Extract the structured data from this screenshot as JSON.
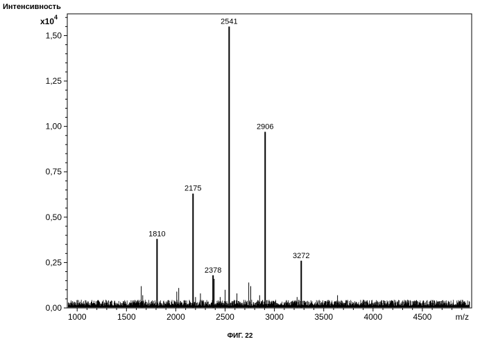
{
  "chart_data": {
    "type": "bar",
    "title": "",
    "ylabel": "Интенсивность",
    "y_multiplier": "x10",
    "y_multiplier_exp": "4",
    "xlabel": "m/z",
    "xlim": [
      900,
      5000
    ],
    "ylim": [
      0,
      1.62
    ],
    "xticks": [
      1000,
      1500,
      2000,
      2500,
      3000,
      3500,
      4000,
      4500
    ],
    "xtick_labels": [
      "1000",
      "1500",
      "2000",
      "2500",
      "3000",
      "3500",
      "4000",
      "4500"
    ],
    "yticks": [
      0,
      0.25,
      0.5,
      0.75,
      1.0,
      1.25,
      1.5
    ],
    "ytick_labels": [
      "0,00",
      "0,25",
      "0,50",
      "0,75",
      "1,00",
      "1,25",
      "1,50"
    ],
    "grid": false,
    "labeled_peaks": [
      {
        "x": 1810,
        "y": 0.38,
        "label": "1810"
      },
      {
        "x": 2175,
        "y": 0.63,
        "label": "2175"
      },
      {
        "x": 2378,
        "y": 0.18,
        "label": "2378"
      },
      {
        "x": 2541,
        "y": 1.55,
        "label": "2541"
      },
      {
        "x": 2906,
        "y": 0.97,
        "label": "2906"
      },
      {
        "x": 3272,
        "y": 0.26,
        "label": "3272"
      }
    ],
    "minor_peaks": [
      {
        "x": 1650,
        "y": 0.12
      },
      {
        "x": 1665,
        "y": 0.07
      },
      {
        "x": 2010,
        "y": 0.09
      },
      {
        "x": 2030,
        "y": 0.11
      },
      {
        "x": 2200,
        "y": 0.06
      },
      {
        "x": 2250,
        "y": 0.08
      },
      {
        "x": 2390,
        "y": 0.16
      },
      {
        "x": 2450,
        "y": 0.06
      },
      {
        "x": 2500,
        "y": 0.1
      },
      {
        "x": 2620,
        "y": 0.08
      },
      {
        "x": 2740,
        "y": 0.14
      },
      {
        "x": 2760,
        "y": 0.12
      },
      {
        "x": 2850,
        "y": 0.07
      },
      {
        "x": 3230,
        "y": 0.06
      },
      {
        "x": 3640,
        "y": 0.07
      }
    ],
    "baseline_level": 0.03
  },
  "caption": "ФИГ. 22"
}
